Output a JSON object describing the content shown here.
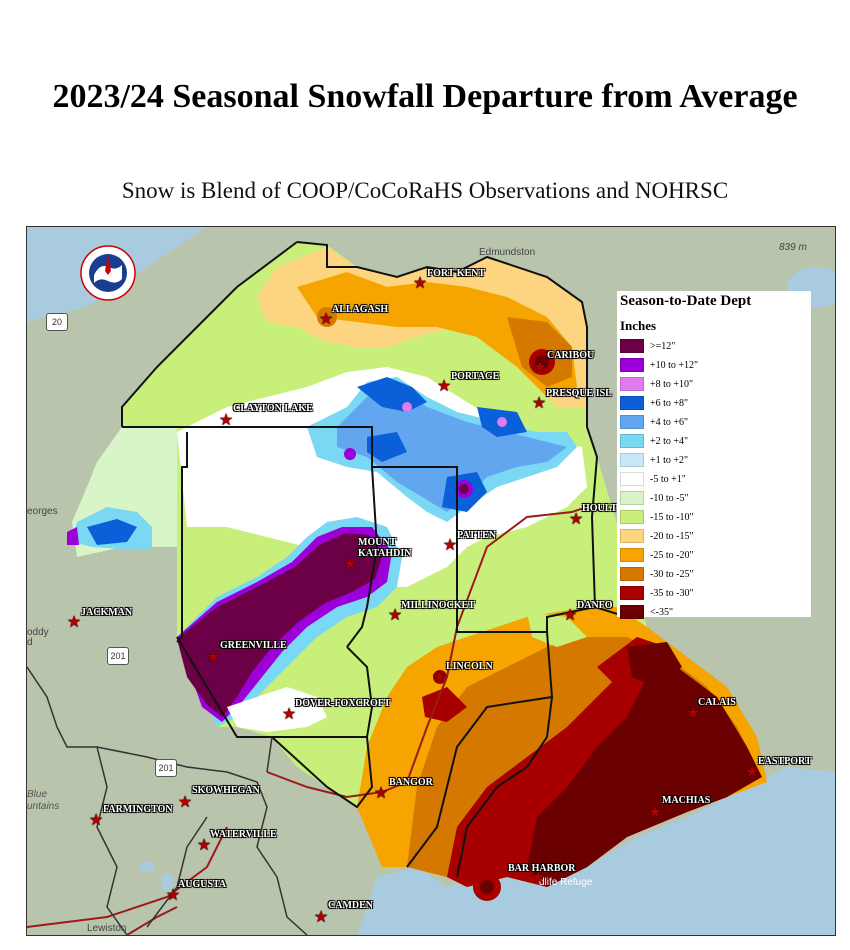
{
  "title": "2023/24 Seasonal Snowfall Departure from Average",
  "subtitle": "Snow is Blend of COOP/CoCoRaHS Observations and NOHRSC",
  "legend": {
    "title": "Season-to-Date Dept",
    "units": "Inches",
    "items": [
      {
        "label": ">=12\"",
        "color": "#6b0046"
      },
      {
        "label": "+10 to +12\"",
        "color": "#9b00d8"
      },
      {
        "label": "+8 to +10\"",
        "color": "#e07bf0"
      },
      {
        "label": "+6 to +8\"",
        "color": "#0b5fd8"
      },
      {
        "label": "+4 to +6\"",
        "color": "#63a6f0"
      },
      {
        "label": "+2 to +4\"",
        "color": "#7ad8f5"
      },
      {
        "label": "+1 to +2\"",
        "color": "#c8e8f8"
      },
      {
        "label": "-5 to +1\"",
        "color": "#ffffff"
      },
      {
        "label": "-10 to -5\"",
        "color": "#d8f5c8"
      },
      {
        "label": "-15 to -10\"",
        "color": "#c8ef7a"
      },
      {
        "label": "-20 to -15\"",
        "color": "#fdd580"
      },
      {
        "label": "-25 to -20\"",
        "color": "#f5a400"
      },
      {
        "label": "-30 to -25\"",
        "color": "#d47800"
      },
      {
        "label": "-35 to -30\"",
        "color": "#a80000"
      },
      {
        "label": "<-35\"",
        "color": "#6b0000"
      }
    ]
  },
  "cities": {
    "fort_kent": "FORT KENT",
    "allagash": "ALLAGASH",
    "caribou": "CARIBOU",
    "portage": "PORTAGE",
    "presque_isle": "PRESQUE ISL",
    "clayton_lake": "CLAYTON LAKE",
    "houlton": "HOULT",
    "patten": "PATTEN",
    "mount_katahdin": "MOUNT\nKATAHDIN",
    "millinocket": "MILLINOCKET",
    "danforth": "DANFO",
    "jackman": "JACKMAN",
    "greenville": "GREENVILLE",
    "lincoln": "LINCOLN",
    "dover_foxcroft": "DOVER-FOXCROFT",
    "calais": "CALAIS",
    "eastport": "EASTPORT",
    "machias": "MACHIAS",
    "bangor": "BANGOR",
    "skowhegan": "SKOWHEGAN",
    "farmington": "FARMINGTON",
    "waterville": "WATERVILLE",
    "augusta": "AUGUSTA",
    "bar_harbor": "BAR HARBOR",
    "camden": "CAMDEN"
  },
  "basemap_labels": {
    "edmundston": "Edmundston",
    "georges": "eorges",
    "route_839": "839 m",
    "blue_mountains_1": "Blue",
    "blue_mountains_2": "untains",
    "lewiston": "Lewiston",
    "wildlife_refuge": "dlife Refuge",
    "roddy": "oddy",
    "roddy2": "d"
  },
  "shields": {
    "s20": "20",
    "s201a": "201",
    "s201b": "201"
  }
}
